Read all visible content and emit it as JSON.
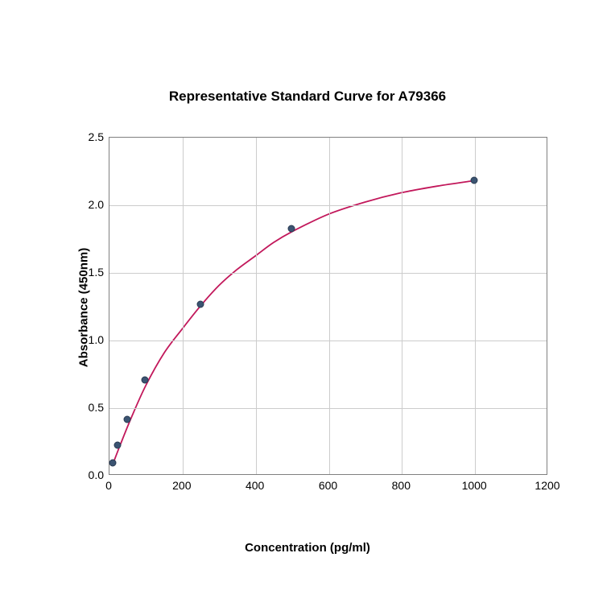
{
  "chart": {
    "type": "scatter-with-curve",
    "title": "Representative Standard Curve for A79366",
    "title_fontsize": 17,
    "xlabel": "Concentration (pg/ml)",
    "ylabel": "Absorbance (450nm)",
    "label_fontsize": 15,
    "tick_fontsize": 14,
    "xlim": [
      0,
      1200
    ],
    "ylim": [
      0,
      2.5
    ],
    "xticks": [
      0,
      200,
      400,
      600,
      800,
      1000,
      1200
    ],
    "yticks": [
      0.0,
      0.5,
      1.0,
      1.5,
      2.0,
      2.5
    ],
    "xtick_labels": [
      "0",
      "200",
      "400",
      "600",
      "800",
      "1000",
      "1200"
    ],
    "ytick_labels": [
      "0.0",
      "0.5",
      "1.0",
      "1.5",
      "2.0",
      "2.5"
    ],
    "background_color": "#ffffff",
    "grid_color": "#cccccc",
    "border_color": "#808080",
    "grid_on": true,
    "data_points": {
      "x": [
        12,
        25,
        50,
        100,
        250,
        500,
        1000
      ],
      "y": [
        0.09,
        0.22,
        0.41,
        0.7,
        1.26,
        1.82,
        2.18
      ]
    },
    "marker_color": "#3b5472",
    "marker_edge_color": "#2a3b52",
    "marker_size": 9,
    "curve_color": "#c2185b",
    "curve_width": 1.8,
    "curve_points": {
      "x": [
        10,
        30,
        60,
        100,
        150,
        200,
        250,
        300,
        350,
        400,
        450,
        500,
        600,
        700,
        800,
        900,
        1000
      ],
      "y": [
        0.08,
        0.22,
        0.42,
        0.66,
        0.9,
        1.08,
        1.25,
        1.4,
        1.52,
        1.62,
        1.72,
        1.8,
        1.93,
        2.02,
        2.09,
        2.14,
        2.18
      ]
    }
  }
}
